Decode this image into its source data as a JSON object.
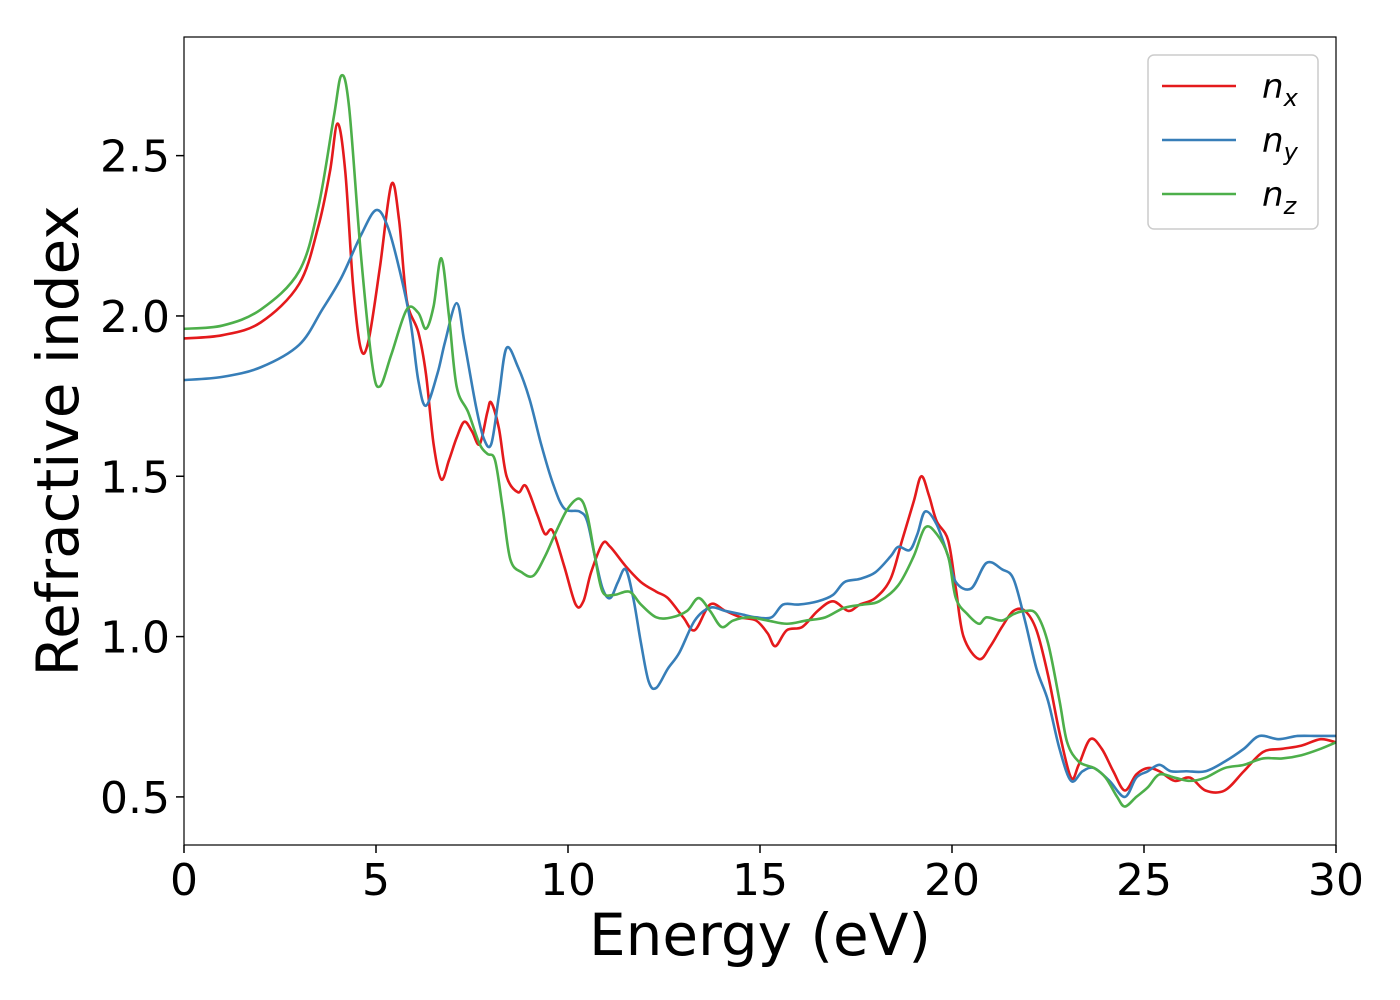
{
  "chart_data": {
    "type": "line",
    "title": "",
    "xlabel": "Energy (eV)",
    "ylabel": "Refractive index",
    "xlim": [
      0,
      30
    ],
    "ylim": [
      0.35,
      2.87
    ],
    "xticks": [
      "0",
      "5",
      "10",
      "15",
      "20",
      "25",
      "30"
    ],
    "yticks": [
      "0.5",
      "1.0",
      "1.5",
      "2.0",
      "2.5"
    ],
    "grid": false,
    "legend_position": "top-right",
    "series": [
      {
        "name": "n_x",
        "label_base": "n",
        "label_sub": "x",
        "color": "#e41a1c",
        "points": [
          [
            0,
            1.93
          ],
          [
            1,
            1.94
          ],
          [
            2,
            1.98
          ],
          [
            3,
            2.1
          ],
          [
            3.5,
            2.28
          ],
          [
            3.8,
            2.45
          ],
          [
            4,
            2.6
          ],
          [
            4.2,
            2.45
          ],
          [
            4.4,
            2.1
          ],
          [
            4.6,
            1.9
          ],
          [
            4.8,
            1.92
          ],
          [
            5.1,
            2.15
          ],
          [
            5.4,
            2.41
          ],
          [
            5.6,
            2.3
          ],
          [
            5.8,
            2.05
          ],
          [
            6.1,
            1.95
          ],
          [
            6.3,
            1.82
          ],
          [
            6.5,
            1.6
          ],
          [
            6.7,
            1.49
          ],
          [
            6.9,
            1.55
          ],
          [
            7.1,
            1.62
          ],
          [
            7.3,
            1.67
          ],
          [
            7.5,
            1.64
          ],
          [
            7.7,
            1.6
          ],
          [
            7.9,
            1.7
          ],
          [
            8.0,
            1.73
          ],
          [
            8.2,
            1.65
          ],
          [
            8.4,
            1.5
          ],
          [
            8.7,
            1.45
          ],
          [
            8.9,
            1.47
          ],
          [
            9.2,
            1.38
          ],
          [
            9.4,
            1.32
          ],
          [
            9.6,
            1.33
          ],
          [
            9.9,
            1.22
          ],
          [
            10.2,
            1.1
          ],
          [
            10.4,
            1.11
          ],
          [
            10.6,
            1.2
          ],
          [
            10.9,
            1.29
          ],
          [
            11.1,
            1.28
          ],
          [
            11.5,
            1.22
          ],
          [
            11.9,
            1.17
          ],
          [
            12.3,
            1.14
          ],
          [
            12.6,
            1.12
          ],
          [
            13,
            1.06
          ],
          [
            13.3,
            1.02
          ],
          [
            13.7,
            1.1
          ],
          [
            14.1,
            1.08
          ],
          [
            14.5,
            1.06
          ],
          [
            14.9,
            1.05
          ],
          [
            15.2,
            1.01
          ],
          [
            15.4,
            0.97
          ],
          [
            15.7,
            1.02
          ],
          [
            16.1,
            1.03
          ],
          [
            16.5,
            1.08
          ],
          [
            16.9,
            1.11
          ],
          [
            17.3,
            1.08
          ],
          [
            17.6,
            1.1
          ],
          [
            18,
            1.12
          ],
          [
            18.4,
            1.18
          ],
          [
            18.7,
            1.3
          ],
          [
            19.0,
            1.42
          ],
          [
            19.2,
            1.5
          ],
          [
            19.4,
            1.44
          ],
          [
            19.6,
            1.36
          ],
          [
            19.9,
            1.3
          ],
          [
            20.1,
            1.15
          ],
          [
            20.3,
            1.0
          ],
          [
            20.7,
            0.93
          ],
          [
            21,
            0.97
          ],
          [
            21.3,
            1.03
          ],
          [
            21.6,
            1.08
          ],
          [
            21.9,
            1.08
          ],
          [
            22.2,
            1.02
          ],
          [
            22.5,
            0.88
          ],
          [
            22.8,
            0.7
          ],
          [
            23.1,
            0.56
          ],
          [
            23.3,
            0.6
          ],
          [
            23.6,
            0.68
          ],
          [
            23.9,
            0.65
          ],
          [
            24.2,
            0.58
          ],
          [
            24.5,
            0.52
          ],
          [
            24.8,
            0.57
          ],
          [
            25.1,
            0.59
          ],
          [
            25.4,
            0.58
          ],
          [
            25.8,
            0.55
          ],
          [
            26.2,
            0.56
          ],
          [
            26.6,
            0.52
          ],
          [
            27.1,
            0.52
          ],
          [
            27.6,
            0.58
          ],
          [
            28.1,
            0.64
          ],
          [
            28.6,
            0.65
          ],
          [
            29.1,
            0.66
          ],
          [
            29.6,
            0.68
          ],
          [
            30,
            0.67
          ]
        ]
      },
      {
        "name": "n_y",
        "label_base": "n",
        "label_sub": "y",
        "color": "#377eb8",
        "points": [
          [
            0,
            1.8
          ],
          [
            1,
            1.81
          ],
          [
            2,
            1.84
          ],
          [
            3,
            1.91
          ],
          [
            3.6,
            2.02
          ],
          [
            4.1,
            2.12
          ],
          [
            4.6,
            2.25
          ],
          [
            5.0,
            2.33
          ],
          [
            5.3,
            2.28
          ],
          [
            5.6,
            2.15
          ],
          [
            5.9,
            1.98
          ],
          [
            6.1,
            1.8
          ],
          [
            6.3,
            1.72
          ],
          [
            6.6,
            1.82
          ],
          [
            6.8,
            1.92
          ],
          [
            7.1,
            2.04
          ],
          [
            7.3,
            1.92
          ],
          [
            7.6,
            1.72
          ],
          [
            7.8,
            1.62
          ],
          [
            8.0,
            1.6
          ],
          [
            8.2,
            1.75
          ],
          [
            8.4,
            1.9
          ],
          [
            8.7,
            1.84
          ],
          [
            9.0,
            1.74
          ],
          [
            9.3,
            1.6
          ],
          [
            9.6,
            1.48
          ],
          [
            9.9,
            1.4
          ],
          [
            10.3,
            1.39
          ],
          [
            10.5,
            1.36
          ],
          [
            10.7,
            1.25
          ],
          [
            10.9,
            1.15
          ],
          [
            11.1,
            1.12
          ],
          [
            11.3,
            1.17
          ],
          [
            11.5,
            1.21
          ],
          [
            11.7,
            1.12
          ],
          [
            11.9,
            0.98
          ],
          [
            12.1,
            0.86
          ],
          [
            12.3,
            0.84
          ],
          [
            12.6,
            0.9
          ],
          [
            12.9,
            0.95
          ],
          [
            13.3,
            1.05
          ],
          [
            13.7,
            1.09
          ],
          [
            14.1,
            1.08
          ],
          [
            14.5,
            1.07
          ],
          [
            14.9,
            1.06
          ],
          [
            15.3,
            1.06
          ],
          [
            15.6,
            1.1
          ],
          [
            16,
            1.1
          ],
          [
            16.5,
            1.11
          ],
          [
            16.9,
            1.13
          ],
          [
            17.2,
            1.17
          ],
          [
            17.6,
            1.18
          ],
          [
            18,
            1.2
          ],
          [
            18.4,
            1.25
          ],
          [
            18.6,
            1.28
          ],
          [
            18.9,
            1.27
          ],
          [
            19.1,
            1.32
          ],
          [
            19.3,
            1.39
          ],
          [
            19.6,
            1.35
          ],
          [
            19.9,
            1.25
          ],
          [
            20.1,
            1.17
          ],
          [
            20.5,
            1.15
          ],
          [
            20.9,
            1.23
          ],
          [
            21.3,
            1.21
          ],
          [
            21.6,
            1.18
          ],
          [
            21.9,
            1.05
          ],
          [
            22.2,
            0.9
          ],
          [
            22.5,
            0.8
          ],
          [
            22.8,
            0.65
          ],
          [
            23.1,
            0.55
          ],
          [
            23.4,
            0.58
          ],
          [
            23.7,
            0.59
          ],
          [
            24.1,
            0.55
          ],
          [
            24.5,
            0.5
          ],
          [
            24.8,
            0.56
          ],
          [
            25.1,
            0.58
          ],
          [
            25.4,
            0.6
          ],
          [
            25.7,
            0.58
          ],
          [
            26.1,
            0.58
          ],
          [
            26.6,
            0.58
          ],
          [
            27.1,
            0.61
          ],
          [
            27.6,
            0.65
          ],
          [
            28,
            0.69
          ],
          [
            28.5,
            0.68
          ],
          [
            29,
            0.69
          ],
          [
            29.5,
            0.69
          ],
          [
            30,
            0.69
          ]
        ]
      },
      {
        "name": "n_z",
        "label_base": "n",
        "label_sub": "z",
        "color": "#4daf4a",
        "points": [
          [
            0,
            1.96
          ],
          [
            1,
            1.97
          ],
          [
            2,
            2.02
          ],
          [
            3,
            2.14
          ],
          [
            3.5,
            2.34
          ],
          [
            3.9,
            2.62
          ],
          [
            4.1,
            2.75
          ],
          [
            4.3,
            2.65
          ],
          [
            4.6,
            2.2
          ],
          [
            4.9,
            1.85
          ],
          [
            5.1,
            1.78
          ],
          [
            5.4,
            1.88
          ],
          [
            5.8,
            2.02
          ],
          [
            6.1,
            2.01
          ],
          [
            6.3,
            1.96
          ],
          [
            6.5,
            2.03
          ],
          [
            6.7,
            2.18
          ],
          [
            6.9,
            2.0
          ],
          [
            7.1,
            1.78
          ],
          [
            7.4,
            1.7
          ],
          [
            7.7,
            1.6
          ],
          [
            7.9,
            1.57
          ],
          [
            8.1,
            1.55
          ],
          [
            8.3,
            1.4
          ],
          [
            8.5,
            1.24
          ],
          [
            8.8,
            1.2
          ],
          [
            9.1,
            1.19
          ],
          [
            9.4,
            1.25
          ],
          [
            9.7,
            1.33
          ],
          [
            10.0,
            1.4
          ],
          [
            10.3,
            1.43
          ],
          [
            10.5,
            1.38
          ],
          [
            10.7,
            1.25
          ],
          [
            10.9,
            1.14
          ],
          [
            11.2,
            1.13
          ],
          [
            11.6,
            1.14
          ],
          [
            11.9,
            1.1
          ],
          [
            12.3,
            1.06
          ],
          [
            12.7,
            1.06
          ],
          [
            13.1,
            1.08
          ],
          [
            13.4,
            1.12
          ],
          [
            13.7,
            1.08
          ],
          [
            14.0,
            1.03
          ],
          [
            14.3,
            1.05
          ],
          [
            14.7,
            1.06
          ],
          [
            15.2,
            1.05
          ],
          [
            15.7,
            1.04
          ],
          [
            16.2,
            1.05
          ],
          [
            16.7,
            1.06
          ],
          [
            17.2,
            1.09
          ],
          [
            17.7,
            1.1
          ],
          [
            18.1,
            1.11
          ],
          [
            18.6,
            1.16
          ],
          [
            19.0,
            1.25
          ],
          [
            19.3,
            1.34
          ],
          [
            19.6,
            1.32
          ],
          [
            19.9,
            1.25
          ],
          [
            20.1,
            1.12
          ],
          [
            20.4,
            1.07
          ],
          [
            20.7,
            1.04
          ],
          [
            20.9,
            1.06
          ],
          [
            21.3,
            1.05
          ],
          [
            21.6,
            1.07
          ],
          [
            21.9,
            1.08
          ],
          [
            22.2,
            1.07
          ],
          [
            22.5,
            0.98
          ],
          [
            22.8,
            0.8
          ],
          [
            23.0,
            0.67
          ],
          [
            23.3,
            0.61
          ],
          [
            23.7,
            0.59
          ],
          [
            24.0,
            0.56
          ],
          [
            24.3,
            0.5
          ],
          [
            24.5,
            0.47
          ],
          [
            24.8,
            0.5
          ],
          [
            25.1,
            0.53
          ],
          [
            25.4,
            0.57
          ],
          [
            25.8,
            0.56
          ],
          [
            26.2,
            0.55
          ],
          [
            26.6,
            0.56
          ],
          [
            27.1,
            0.59
          ],
          [
            27.6,
            0.6
          ],
          [
            28.1,
            0.62
          ],
          [
            28.6,
            0.62
          ],
          [
            29.1,
            0.63
          ],
          [
            29.6,
            0.65
          ],
          [
            30,
            0.67
          ]
        ]
      }
    ]
  }
}
